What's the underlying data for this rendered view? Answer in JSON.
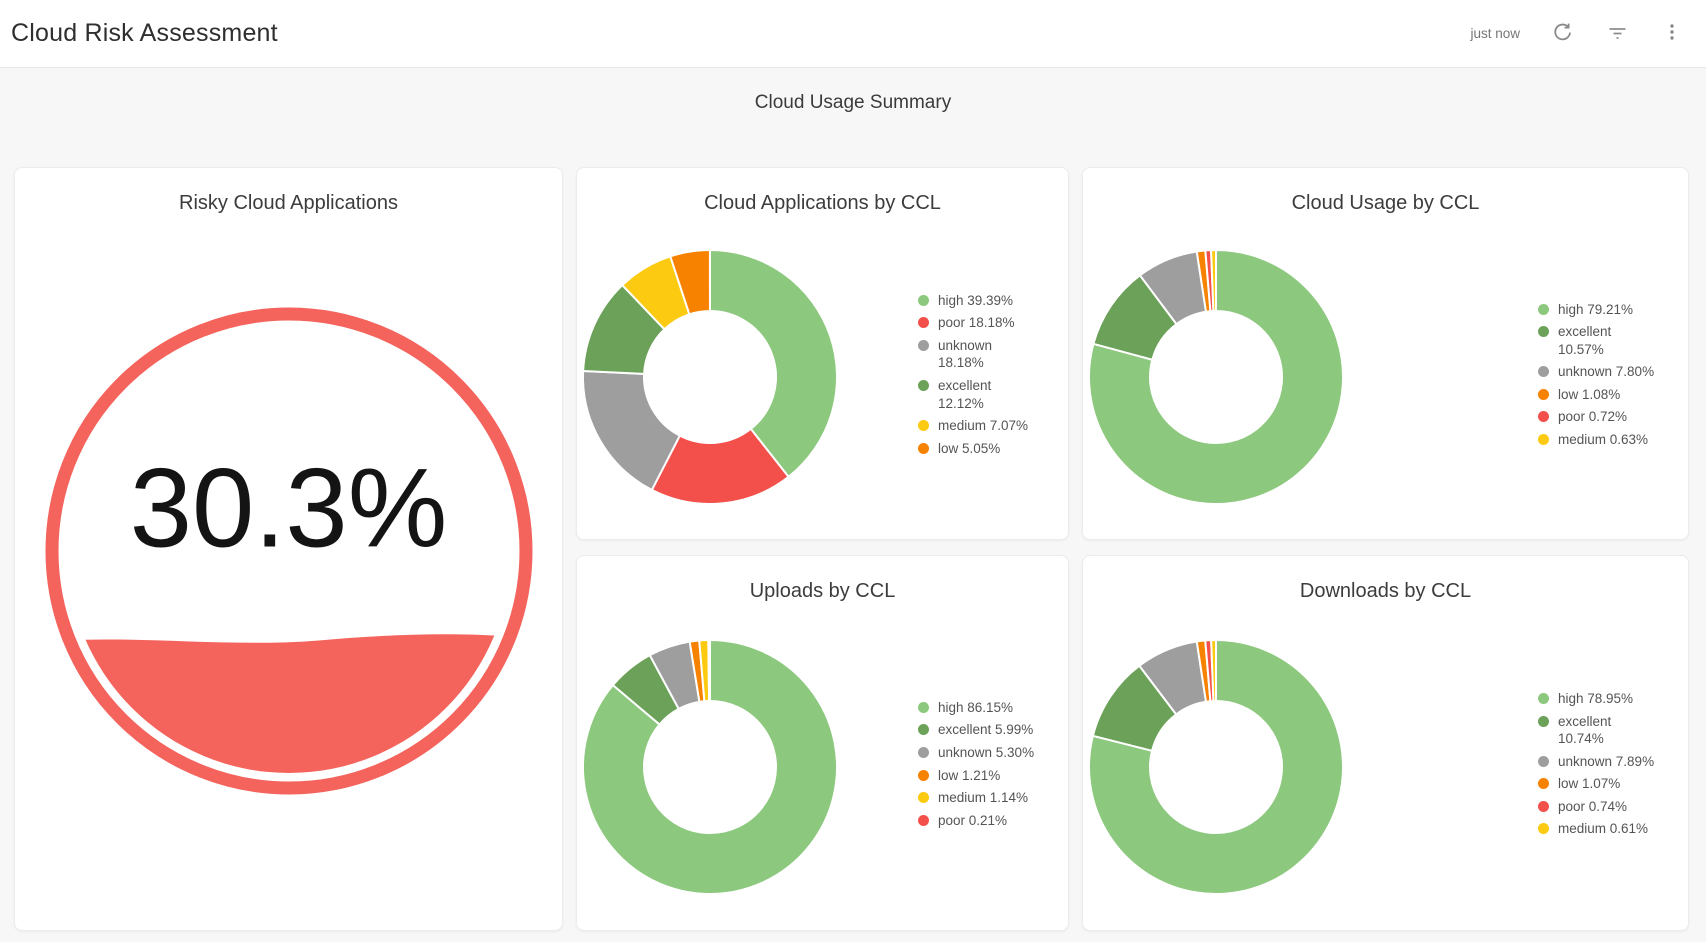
{
  "header": {
    "title": "Cloud Risk Assessment",
    "last_refreshed": "just now"
  },
  "section": {
    "title": "Cloud Usage Summary"
  },
  "colors": {
    "high": "#8cc87d",
    "excellent": "#6ba158",
    "unknown": "#9e9e9e",
    "poor": "#f4504b",
    "medium": "#fcca10",
    "low": "#f78200",
    "gauge_red": "#f4635c",
    "page_background": "#f7f7f7",
    "card_background": "#ffffff"
  },
  "chart_data": [
    {
      "type": "gauge",
      "title": "Risky Cloud Applications",
      "value": 30.3,
      "unit": "%",
      "display": "30.3%",
      "color": "#f4635c",
      "range": [
        0,
        100
      ]
    },
    {
      "type": "pie",
      "donut": true,
      "title": "Cloud Applications by CCL",
      "legend_position": "right",
      "series": [
        {
          "name": "high",
          "value": 39.39,
          "color": "#8cc87d",
          "label": "high 39.39%"
        },
        {
          "name": "poor",
          "value": 18.18,
          "color": "#f4504b",
          "label": "poor 18.18%"
        },
        {
          "name": "unknown",
          "value": 18.18,
          "color": "#9e9e9e",
          "label": "unknown\n18.18%"
        },
        {
          "name": "excellent",
          "value": 12.12,
          "color": "#6ba158",
          "label": "excellent\n12.12%"
        },
        {
          "name": "medium",
          "value": 7.07,
          "color": "#fcca10",
          "label": "medium 7.07%"
        },
        {
          "name": "low",
          "value": 5.05,
          "color": "#f78200",
          "label": "low 5.05%"
        }
      ]
    },
    {
      "type": "pie",
      "donut": true,
      "title": "Cloud Usage by CCL",
      "legend_position": "right",
      "series": [
        {
          "name": "high",
          "value": 79.21,
          "color": "#8cc87d",
          "label": "high 79.21%"
        },
        {
          "name": "excellent",
          "value": 10.57,
          "color": "#6ba158",
          "label": "excellent\n10.57%"
        },
        {
          "name": "unknown",
          "value": 7.8,
          "color": "#9e9e9e",
          "label": "unknown 7.80%"
        },
        {
          "name": "low",
          "value": 1.08,
          "color": "#f78200",
          "label": "low 1.08%"
        },
        {
          "name": "poor",
          "value": 0.72,
          "color": "#f4504b",
          "label": "poor 0.72%"
        },
        {
          "name": "medium",
          "value": 0.63,
          "color": "#fcca10",
          "label": "medium 0.63%"
        }
      ]
    },
    {
      "type": "pie",
      "donut": true,
      "title": "Uploads by CCL",
      "legend_position": "right",
      "series": [
        {
          "name": "high",
          "value": 86.15,
          "color": "#8cc87d",
          "label": "high 86.15%"
        },
        {
          "name": "excellent",
          "value": 5.99,
          "color": "#6ba158",
          "label": "excellent 5.99%"
        },
        {
          "name": "unknown",
          "value": 5.3,
          "color": "#9e9e9e",
          "label": "unknown 5.30%"
        },
        {
          "name": "low",
          "value": 1.21,
          "color": "#f78200",
          "label": "low 1.21%"
        },
        {
          "name": "medium",
          "value": 1.14,
          "color": "#fcca10",
          "label": "medium 1.14%"
        },
        {
          "name": "poor",
          "value": 0.21,
          "color": "#f4504b",
          "label": "poor 0.21%"
        }
      ]
    },
    {
      "type": "pie",
      "donut": true,
      "title": "Downloads by CCL",
      "legend_position": "right",
      "series": [
        {
          "name": "high",
          "value": 78.95,
          "color": "#8cc87d",
          "label": "high 78.95%"
        },
        {
          "name": "excellent",
          "value": 10.74,
          "color": "#6ba158",
          "label": "excellent\n10.74%"
        },
        {
          "name": "unknown",
          "value": 7.89,
          "color": "#9e9e9e",
          "label": "unknown 7.89%"
        },
        {
          "name": "low",
          "value": 1.07,
          "color": "#f78200",
          "label": "low 1.07%"
        },
        {
          "name": "poor",
          "value": 0.74,
          "color": "#f4504b",
          "label": "poor 0.74%"
        },
        {
          "name": "medium",
          "value": 0.61,
          "color": "#fcca10",
          "label": "medium 0.61%"
        }
      ]
    }
  ]
}
